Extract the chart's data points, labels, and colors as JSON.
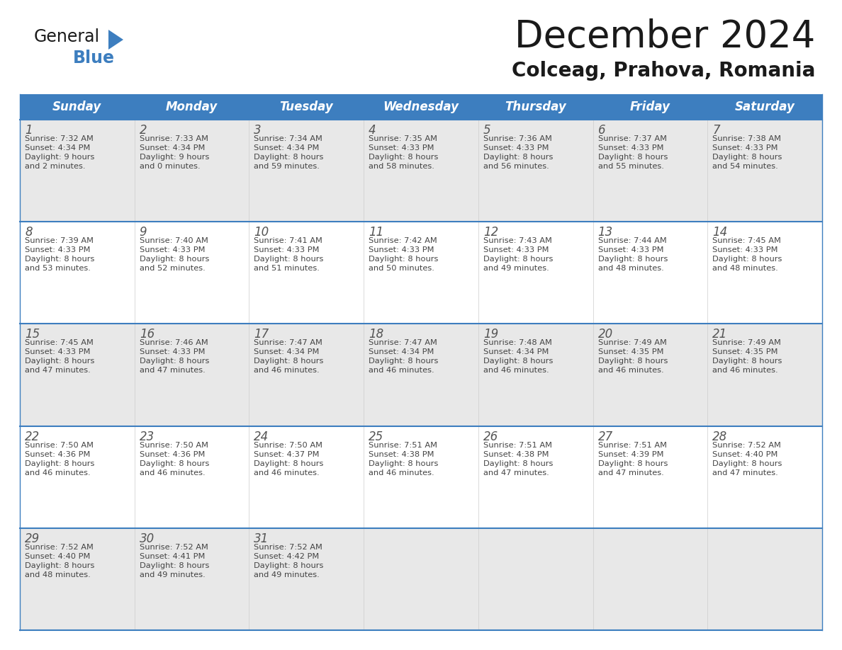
{
  "title": "December 2024",
  "subtitle": "Colceag, Prahova, Romania",
  "header_bg": "#3d7ebf",
  "header_text_color": "#ffffff",
  "days_of_week": [
    "Sunday",
    "Monday",
    "Tuesday",
    "Wednesday",
    "Thursday",
    "Friday",
    "Saturday"
  ],
  "cell_bg_light": "#e8e8e8",
  "cell_bg_white": "#ffffff",
  "divider_color": "#3d7ebf",
  "text_color": "#444444",
  "calendar_data": [
    [
      {
        "day": "1",
        "sunrise": "7:32 AM",
        "sunset": "4:34 PM",
        "daylight1": "Daylight: 9 hours",
        "daylight2": "and 2 minutes."
      },
      {
        "day": "2",
        "sunrise": "7:33 AM",
        "sunset": "4:34 PM",
        "daylight1": "Daylight: 9 hours",
        "daylight2": "and 0 minutes."
      },
      {
        "day": "3",
        "sunrise": "7:34 AM",
        "sunset": "4:34 PM",
        "daylight1": "Daylight: 8 hours",
        "daylight2": "and 59 minutes."
      },
      {
        "day": "4",
        "sunrise": "7:35 AM",
        "sunset": "4:33 PM",
        "daylight1": "Daylight: 8 hours",
        "daylight2": "and 58 minutes."
      },
      {
        "day": "5",
        "sunrise": "7:36 AM",
        "sunset": "4:33 PM",
        "daylight1": "Daylight: 8 hours",
        "daylight2": "and 56 minutes."
      },
      {
        "day": "6",
        "sunrise": "7:37 AM",
        "sunset": "4:33 PM",
        "daylight1": "Daylight: 8 hours",
        "daylight2": "and 55 minutes."
      },
      {
        "day": "7",
        "sunrise": "7:38 AM",
        "sunset": "4:33 PM",
        "daylight1": "Daylight: 8 hours",
        "daylight2": "and 54 minutes."
      }
    ],
    [
      {
        "day": "8",
        "sunrise": "7:39 AM",
        "sunset": "4:33 PM",
        "daylight1": "Daylight: 8 hours",
        "daylight2": "and 53 minutes."
      },
      {
        "day": "9",
        "sunrise": "7:40 AM",
        "sunset": "4:33 PM",
        "daylight1": "Daylight: 8 hours",
        "daylight2": "and 52 minutes."
      },
      {
        "day": "10",
        "sunrise": "7:41 AM",
        "sunset": "4:33 PM",
        "daylight1": "Daylight: 8 hours",
        "daylight2": "and 51 minutes."
      },
      {
        "day": "11",
        "sunrise": "7:42 AM",
        "sunset": "4:33 PM",
        "daylight1": "Daylight: 8 hours",
        "daylight2": "and 50 minutes."
      },
      {
        "day": "12",
        "sunrise": "7:43 AM",
        "sunset": "4:33 PM",
        "daylight1": "Daylight: 8 hours",
        "daylight2": "and 49 minutes."
      },
      {
        "day": "13",
        "sunrise": "7:44 AM",
        "sunset": "4:33 PM",
        "daylight1": "Daylight: 8 hours",
        "daylight2": "and 48 minutes."
      },
      {
        "day": "14",
        "sunrise": "7:45 AM",
        "sunset": "4:33 PM",
        "daylight1": "Daylight: 8 hours",
        "daylight2": "and 48 minutes."
      }
    ],
    [
      {
        "day": "15",
        "sunrise": "7:45 AM",
        "sunset": "4:33 PM",
        "daylight1": "Daylight: 8 hours",
        "daylight2": "and 47 minutes."
      },
      {
        "day": "16",
        "sunrise": "7:46 AM",
        "sunset": "4:33 PM",
        "daylight1": "Daylight: 8 hours",
        "daylight2": "and 47 minutes."
      },
      {
        "day": "17",
        "sunrise": "7:47 AM",
        "sunset": "4:34 PM",
        "daylight1": "Daylight: 8 hours",
        "daylight2": "and 46 minutes."
      },
      {
        "day": "18",
        "sunrise": "7:47 AM",
        "sunset": "4:34 PM",
        "daylight1": "Daylight: 8 hours",
        "daylight2": "and 46 minutes."
      },
      {
        "day": "19",
        "sunrise": "7:48 AM",
        "sunset": "4:34 PM",
        "daylight1": "Daylight: 8 hours",
        "daylight2": "and 46 minutes."
      },
      {
        "day": "20",
        "sunrise": "7:49 AM",
        "sunset": "4:35 PM",
        "daylight1": "Daylight: 8 hours",
        "daylight2": "and 46 minutes."
      },
      {
        "day": "21",
        "sunrise": "7:49 AM",
        "sunset": "4:35 PM",
        "daylight1": "Daylight: 8 hours",
        "daylight2": "and 46 minutes."
      }
    ],
    [
      {
        "day": "22",
        "sunrise": "7:50 AM",
        "sunset": "4:36 PM",
        "daylight1": "Daylight: 8 hours",
        "daylight2": "and 46 minutes."
      },
      {
        "day": "23",
        "sunrise": "7:50 AM",
        "sunset": "4:36 PM",
        "daylight1": "Daylight: 8 hours",
        "daylight2": "and 46 minutes."
      },
      {
        "day": "24",
        "sunrise": "7:50 AM",
        "sunset": "4:37 PM",
        "daylight1": "Daylight: 8 hours",
        "daylight2": "and 46 minutes."
      },
      {
        "day": "25",
        "sunrise": "7:51 AM",
        "sunset": "4:38 PM",
        "daylight1": "Daylight: 8 hours",
        "daylight2": "and 46 minutes."
      },
      {
        "day": "26",
        "sunrise": "7:51 AM",
        "sunset": "4:38 PM",
        "daylight1": "Daylight: 8 hours",
        "daylight2": "and 47 minutes."
      },
      {
        "day": "27",
        "sunrise": "7:51 AM",
        "sunset": "4:39 PM",
        "daylight1": "Daylight: 8 hours",
        "daylight2": "and 47 minutes."
      },
      {
        "day": "28",
        "sunrise": "7:52 AM",
        "sunset": "4:40 PM",
        "daylight1": "Daylight: 8 hours",
        "daylight2": "and 47 minutes."
      }
    ],
    [
      {
        "day": "29",
        "sunrise": "7:52 AM",
        "sunset": "4:40 PM",
        "daylight1": "Daylight: 8 hours",
        "daylight2": "and 48 minutes."
      },
      {
        "day": "30",
        "sunrise": "7:52 AM",
        "sunset": "4:41 PM",
        "daylight1": "Daylight: 8 hours",
        "daylight2": "and 49 minutes."
      },
      {
        "day": "31",
        "sunrise": "7:52 AM",
        "sunset": "4:42 PM",
        "daylight1": "Daylight: 8 hours",
        "daylight2": "and 49 minutes."
      },
      null,
      null,
      null,
      null
    ]
  ]
}
